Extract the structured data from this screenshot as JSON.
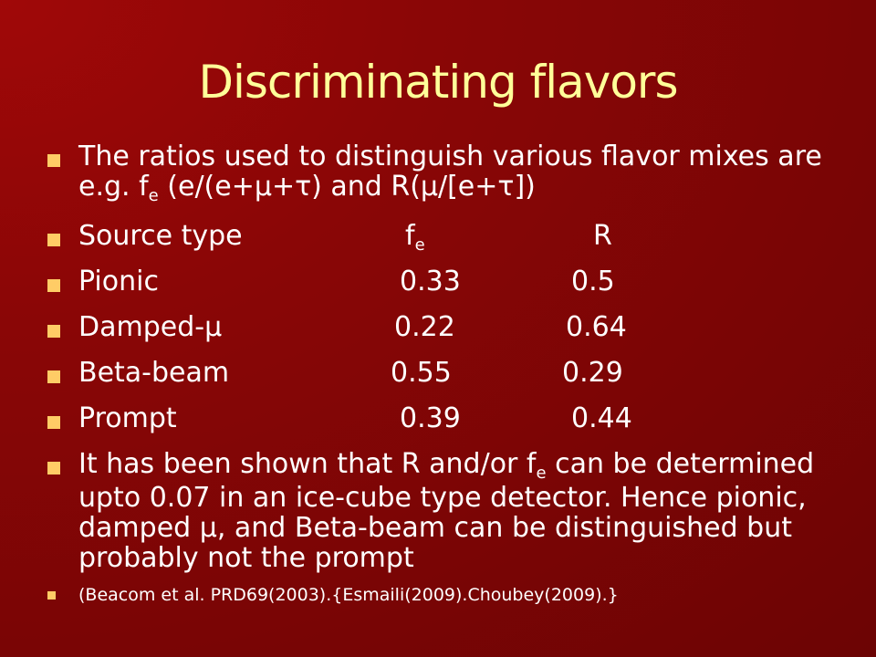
{
  "slide": {
    "title": "Discriminating flavors",
    "intro": {
      "text_before_sub": "The ratios used to distinguish various flavor mixes are e.g. f",
      "sub": "e",
      "text_after_sub": " (e/(e+μ+τ) and R(μ/[e+τ])"
    },
    "table_header": {
      "source": "Source type",
      "fe_main": "f",
      "fe_sub": "e",
      "r": "R"
    },
    "table_rows": [
      {
        "name": "Pionic",
        "fe": "0.33",
        "r": "0.5"
      },
      {
        "name": "Damped-μ",
        "fe": "0.22",
        "r": "0.64"
      },
      {
        "name": "Beta-beam",
        "fe": "0.55",
        "r": "0.29"
      },
      {
        "name": "Prompt",
        "fe": "0.39",
        "r": "0.44"
      }
    ],
    "conclusion": {
      "text_before_sub": "It has been shown that R and/or f",
      "sub": "e",
      "text_after_sub": " can be determined upto 0.07 in an ice-cube type detector. Hence pionic, damped μ, and Beta-beam can be distinguished but  probably not the prompt"
    },
    "reference": "(Beacom et al. PRD69(2003).{Esmaili(2009).Choubey(2009).}"
  },
  "colors": {
    "background": "#8a0606",
    "title": "#ffff99",
    "text": "#ffffff",
    "bullet": "#ffcc66"
  }
}
